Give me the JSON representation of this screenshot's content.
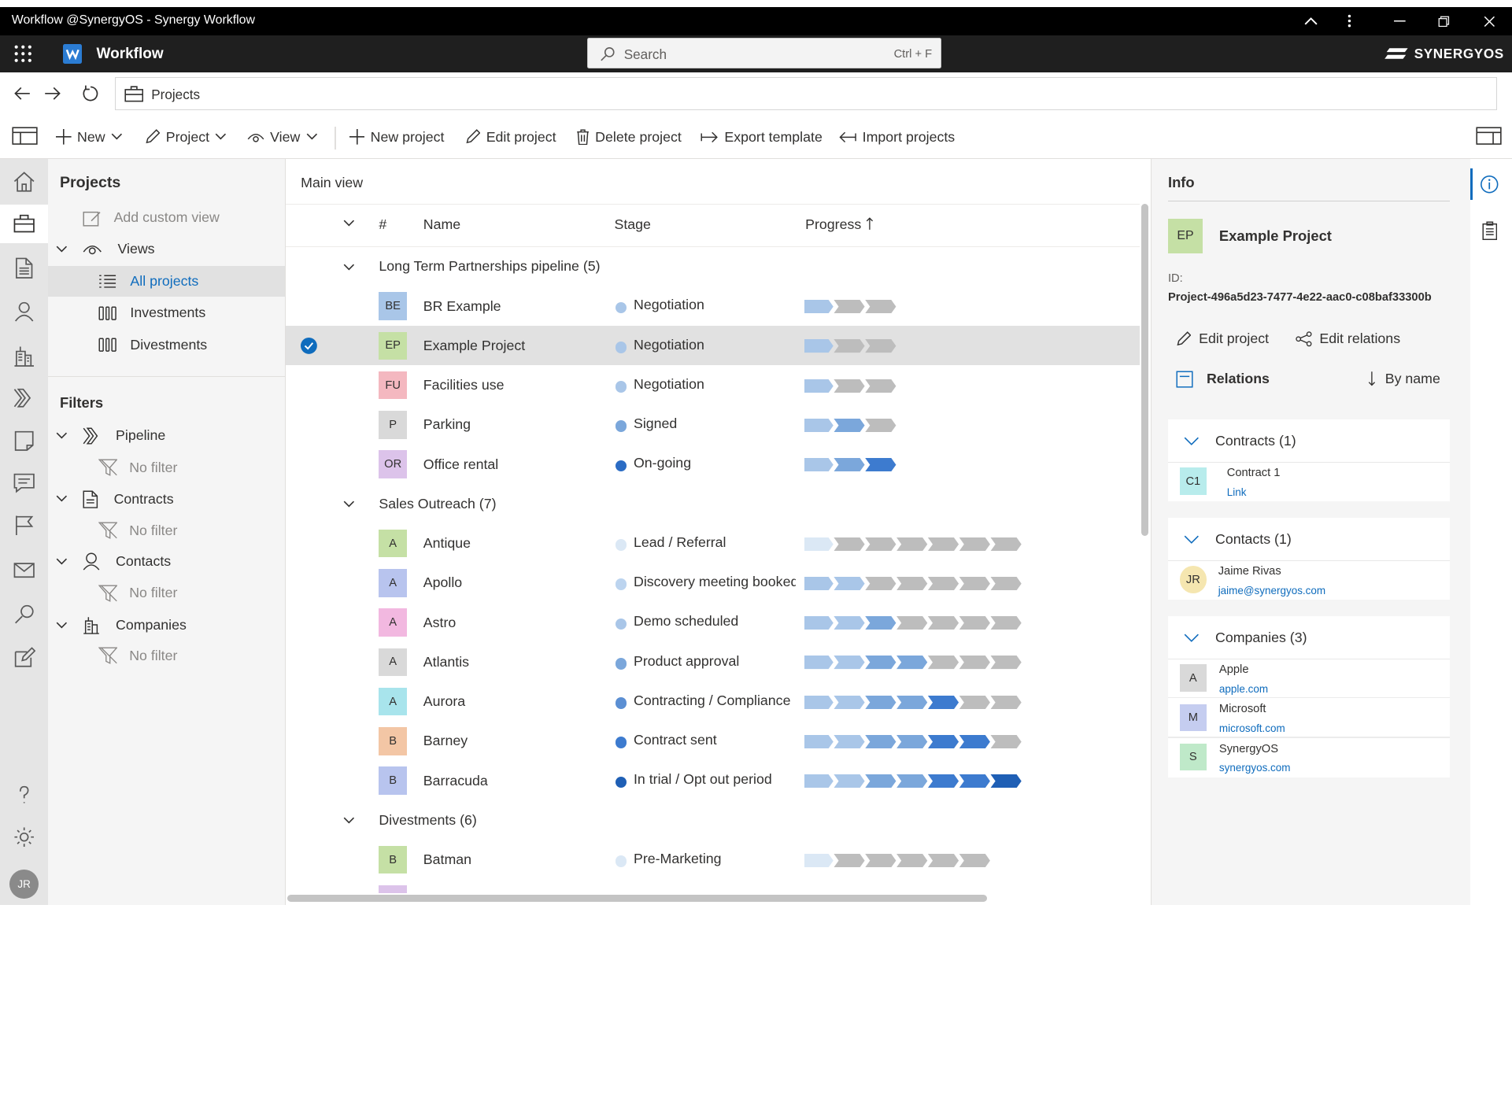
{
  "window": {
    "title": "Workflow @SynergyOS - Synergy Workflow"
  },
  "app": {
    "name": "Workflow",
    "brand": "SYNERGYOS"
  },
  "search": {
    "placeholder": "Search",
    "shortcut": "Ctrl + F"
  },
  "address": {
    "text": "Projects"
  },
  "toolbar": {
    "new": "New",
    "project": "Project",
    "view": "View",
    "new_project": "New project",
    "edit_project": "Edit project",
    "delete_project": "Delete project",
    "export_template": "Export template",
    "import_projects": "Import projects"
  },
  "rail": {
    "icons": [
      "home-icon",
      "briefcase-icon",
      "document-icon",
      "person-icon",
      "building-icon",
      "pipeline-icon",
      "note-icon",
      "chat-icon",
      "flag-icon",
      "mail-icon",
      "search-icon",
      "edit-icon"
    ],
    "bottom_icons": [
      "help-icon",
      "settings-icon"
    ],
    "user_initials": "JR"
  },
  "nav": {
    "title": "Projects",
    "add_custom_view": "Add custom view",
    "views": "Views",
    "view_items": [
      "All projects",
      "Investments",
      "Divestments"
    ],
    "filters_title": "Filters",
    "filters": [
      {
        "label": "Pipeline",
        "value": "No filter"
      },
      {
        "label": "Contracts",
        "value": "No filter"
      },
      {
        "label": "Contacts",
        "value": "No filter"
      },
      {
        "label": "Companies",
        "value": "No filter"
      }
    ]
  },
  "main": {
    "view_title": "Main view",
    "columns": {
      "num": "#",
      "name": "Name",
      "stage": "Stage",
      "progress": "Progress"
    },
    "groups": [
      {
        "title": "Long Term Partnerships pipeline (5)",
        "rows": [
          {
            "initials": "BE",
            "name": "BR Example",
            "stage": "Negotiation",
            "badge_bg": "#a9c6e8",
            "progress": [
              1,
              0,
              0
            ],
            "dot": "#a9c6e8"
          },
          {
            "initials": "EP",
            "name": "Example Project",
            "stage": "Negotiation",
            "badge_bg": "#c5e0a5",
            "progress": [
              1,
              0,
              0
            ],
            "dot": "#a9c6e8",
            "selected": true
          },
          {
            "initials": "FU",
            "name": "Facilities use",
            "stage": "Negotiation",
            "badge_bg": "#f4b8c0",
            "progress": [
              1,
              0,
              0
            ],
            "dot": "#a9c6e8"
          },
          {
            "initials": "P",
            "name": "Parking",
            "stage": "Signed",
            "badge_bg": "#d9d9d9",
            "progress": [
              1,
              2,
              0
            ],
            "dot": "#7ba7db"
          },
          {
            "initials": "OR",
            "name": "Office rental",
            "stage": "On-going",
            "badge_bg": "#dcc3ea",
            "progress": [
              1,
              2,
              3
            ],
            "dot": "#2b6cc4"
          }
        ]
      },
      {
        "title": "Sales Outreach (7)",
        "rows": [
          {
            "initials": "A",
            "name": "Antique",
            "stage": "Lead / Referral",
            "badge_bg": "#c5e0a5",
            "progress": [
              0,
              0,
              0,
              0,
              0,
              0,
              0
            ],
            "first": true,
            "dot": "#dbe8f5"
          },
          {
            "initials": "A",
            "name": "Apollo",
            "stage": "Discovery meeting booked",
            "badge_bg": "#b8c4ee",
            "progress": [
              1,
              1,
              0,
              0,
              0,
              0,
              0
            ],
            "dot": "#bcd4ef"
          },
          {
            "initials": "A",
            "name": "Astro",
            "stage": "Demo scheduled",
            "badge_bg": "#f2b8e0",
            "progress": [
              1,
              1,
              2,
              0,
              0,
              0,
              0
            ],
            "dot": "#a9c6e8"
          },
          {
            "initials": "A",
            "name": "Atlantis",
            "stage": "Product approval",
            "badge_bg": "#d9d9d9",
            "progress": [
              1,
              1,
              2,
              2,
              0,
              0,
              0
            ],
            "dot": "#7ba7db"
          },
          {
            "initials": "A",
            "name": "Aurora",
            "stage": "Contracting / Compliance",
            "badge_bg": "#a8e4ec",
            "progress": [
              1,
              1,
              2,
              2,
              3,
              0,
              0
            ],
            "dot": "#5b8fd3"
          },
          {
            "initials": "B",
            "name": "Barney",
            "stage": "Contract sent",
            "badge_bg": "#f3c6a5",
            "progress": [
              1,
              1,
              2,
              2,
              3,
              3,
              0
            ],
            "dot": "#3d7bcf"
          },
          {
            "initials": "B",
            "name": "Barracuda",
            "stage": "In trial / Opt out period",
            "badge_bg": "#b8c4ee",
            "progress": [
              1,
              1,
              2,
              2,
              3,
              3,
              4
            ],
            "dot": "#1f5fb5"
          }
        ]
      },
      {
        "title": "Divestments (6)",
        "rows": [
          {
            "initials": "B",
            "name": "Batman",
            "stage": "Pre-Marketing",
            "badge_bg": "#c5e0a5",
            "progress": [
              0,
              0,
              0,
              0,
              0,
              0
            ],
            "first": true,
            "dot": "#dbe8f5"
          }
        ]
      }
    ]
  },
  "info": {
    "title": "Info",
    "project_initials": "EP",
    "project_name": "Example Project",
    "id_label": "ID:",
    "id_value": "Project-496a5d23-7477-4e22-aac0-c08baf33300b",
    "edit_project": "Edit project",
    "edit_relations": "Edit relations",
    "relations": "Relations",
    "sort": "By name",
    "sections": [
      {
        "title": "Contracts (1)",
        "items": [
          {
            "initials": "C1",
            "name": "Contract 1",
            "sub": "Link",
            "bg": "#b8ecec"
          }
        ]
      },
      {
        "title": "Contacts (1)",
        "items": [
          {
            "initials": "JR",
            "name": "Jaime Rivas",
            "sub": "jaime@synergyos.com",
            "bg": "#f5e6b0",
            "round": true
          }
        ]
      },
      {
        "title": "Companies (3)",
        "items": [
          {
            "initials": "A",
            "name": "Apple",
            "sub": "apple.com",
            "bg": "#d9d9d9"
          },
          {
            "initials": "M",
            "name": "Microsoft",
            "sub": "microsoft.com",
            "bg": "#c5cdf0"
          },
          {
            "initials": "S",
            "name": "SynergyOS",
            "sub": "synergyos.com",
            "bg": "#bfe9c9"
          }
        ]
      }
    ]
  },
  "colors": {
    "accent": "#0f6cbd",
    "selected_row": "#e1e1e1",
    "stage_gray": "#bdbdbd",
    "stage_light": "#dbe8f5",
    "stage_1": "#a9c6e8",
    "stage_2": "#7ba7db",
    "stage_3": "#3d7bcf",
    "stage_4": "#1f5fb5"
  }
}
